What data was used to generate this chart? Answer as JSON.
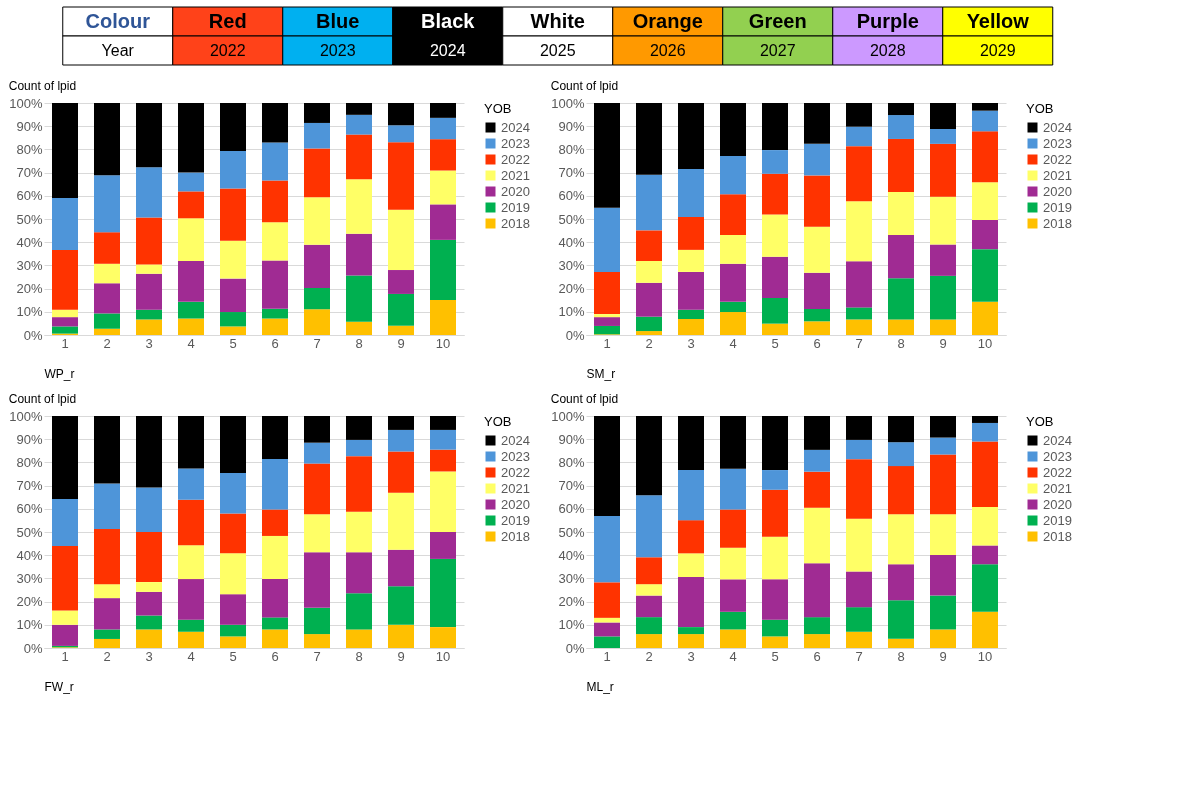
{
  "chart_data": [
    {
      "type": "other",
      "xlabel": "Colour",
      "ylabel": "Year",
      "categories": [
        "Red",
        "Blue",
        "Black",
        "White",
        "Orange",
        "Green",
        "Purple",
        "Yellow"
      ],
      "values": [
        2022,
        2023,
        2024,
        2025,
        2026,
        2027,
        2028,
        2029
      ],
      "data_labels": true,
      "colors": [
        "#ff4219",
        "#00b0f0",
        "#000000",
        "#ffffff",
        "#ff9900",
        "#92d050",
        "#cc99ff",
        "#ffff00"
      ]
    },
    {
      "type": "bar",
      "stacked": true,
      "title": "Count of lpid",
      "xlabel": "WP_r",
      "legend_title": "YOB",
      "legend": "right",
      "grid": "y",
      "categories": [
        "1",
        "2",
        "3",
        "4",
        "5",
        "6",
        "7",
        "8",
        "9",
        "10"
      ],
      "ylim": [
        0,
        100
      ],
      "yticks": [
        {
          "value": 0,
          "label": "0%"
        },
        {
          "value": 10,
          "label": "10%"
        },
        {
          "value": 20,
          "label": "20%"
        },
        {
          "value": 30,
          "label": "30%"
        },
        {
          "value": 40,
          "label": "40%"
        },
        {
          "value": 50,
          "label": "50%"
        },
        {
          "value": 60,
          "label": "60%"
        },
        {
          "value": 70,
          "label": "70%"
        },
        {
          "value": 80,
          "label": "80%"
        },
        {
          "value": 90,
          "label": "90%"
        },
        {
          "value": 100,
          "label": "100%"
        }
      ],
      "series": [
        {
          "name": "2018",
          "color": "#ffc000",
          "values": [
            0.6,
            2.7,
            6.7,
            7.1,
            3.7,
            7.1,
            11.1,
            5.7,
            4.0,
            15.1
          ]
        },
        {
          "name": "2019",
          "color": "#00b050",
          "values": [
            3.1,
            6.6,
            4.2,
            7.2,
            6.2,
            4.2,
            9.2,
            19.9,
            13.7,
            25.9
          ]
        },
        {
          "name": "2020",
          "color": "#a02b93",
          "values": [
            4.0,
            13.0,
            15.5,
            17.6,
            14.4,
            20.8,
            18.6,
            18.0,
            10.3,
            15.3
          ]
        },
        {
          "name": "2021",
          "color": "#ffff66",
          "values": [
            3.2,
            8.4,
            4.0,
            18.4,
            16.3,
            16.5,
            20.5,
            23.5,
            26.0,
            14.6
          ]
        },
        {
          "name": "2022",
          "color": "#ff3300",
          "values": [
            25.7,
            13.6,
            20.3,
            11.6,
            22.5,
            18.0,
            21.0,
            19.3,
            29.1,
            13.5
          ]
        },
        {
          "name": "2023",
          "color": "#4e95d9",
          "values": [
            22.4,
            24.6,
            21.6,
            8.1,
            16.2,
            16.4,
            11.0,
            8.5,
            7.3,
            9.2
          ]
        },
        {
          "name": "2024",
          "color": "#000000",
          "values": [
            41.0,
            31.1,
            27.7,
            30.0,
            20.7,
            17.0,
            8.6,
            5.1,
            9.6,
            6.4
          ]
        }
      ]
    },
    {
      "type": "bar",
      "stacked": true,
      "title": "Count of lpid",
      "xlabel": "SM_r",
      "legend_title": "YOB",
      "legend": "right",
      "grid": "y",
      "categories": [
        "1",
        "2",
        "3",
        "4",
        "5",
        "6",
        "7",
        "8",
        "9",
        "10"
      ],
      "ylim": [
        0,
        100
      ],
      "yticks": [
        {
          "value": 0,
          "label": "0%"
        },
        {
          "value": 10,
          "label": "10%"
        },
        {
          "value": 20,
          "label": "20%"
        },
        {
          "value": 30,
          "label": "30%"
        },
        {
          "value": 40,
          "label": "40%"
        },
        {
          "value": 50,
          "label": "50%"
        },
        {
          "value": 60,
          "label": "60%"
        },
        {
          "value": 70,
          "label": "70%"
        },
        {
          "value": 80,
          "label": "80%"
        },
        {
          "value": 90,
          "label": "90%"
        },
        {
          "value": 100,
          "label": "100%"
        }
      ],
      "series": [
        {
          "name": "2018",
          "color": "#ffc000",
          "values": [
            0.3,
            1.7,
            6.9,
            9.9,
            4.9,
            5.9,
            6.7,
            6.7,
            6.7,
            14.3
          ]
        },
        {
          "name": "2019",
          "color": "#00b050",
          "values": [
            3.6,
            6.2,
            4.0,
            4.4,
            11.1,
            5.3,
            5.2,
            17.8,
            18.8,
            22.7
          ]
        },
        {
          "name": "2020",
          "color": "#a02b93",
          "values": [
            3.8,
            14.6,
            16.3,
            16.4,
            17.7,
            15.6,
            19.9,
            18.6,
            13.5,
            12.6
          ]
        },
        {
          "name": "2021",
          "color": "#ffff66",
          "values": [
            1.3,
            9.4,
            9.5,
            12.4,
            18.2,
            19.9,
            25.8,
            18.5,
            20.6,
            16.2
          ]
        },
        {
          "name": "2022",
          "color": "#ff3300",
          "values": [
            18.2,
            13.2,
            14.2,
            17.6,
            17.6,
            22.1,
            23.8,
            22.9,
            22.8,
            22.0
          ]
        },
        {
          "name": "2023",
          "color": "#4e95d9",
          "values": [
            27.7,
            24.0,
            20.6,
            16.5,
            10.2,
            13.6,
            8.4,
            10.3,
            6.4,
            8.9
          ]
        },
        {
          "name": "2024",
          "color": "#000000",
          "values": [
            45.1,
            30.9,
            28.5,
            22.8,
            20.3,
            17.6,
            10.2,
            5.2,
            11.2,
            3.3
          ]
        }
      ]
    },
    {
      "type": "bar",
      "stacked": true,
      "title": "Count of lpid",
      "xlabel": "FW_r",
      "legend_title": "YOB",
      "legend": "right",
      "grid": "y",
      "categories": [
        "1",
        "2",
        "3",
        "4",
        "5",
        "6",
        "7",
        "8",
        "9",
        "10"
      ],
      "ylim": [
        0,
        100
      ],
      "yticks": [
        {
          "value": 0,
          "label": "0%"
        },
        {
          "value": 10,
          "label": "10%"
        },
        {
          "value": 20,
          "label": "20%"
        },
        {
          "value": 30,
          "label": "30%"
        },
        {
          "value": 40,
          "label": "40%"
        },
        {
          "value": 50,
          "label": "50%"
        },
        {
          "value": 60,
          "label": "60%"
        },
        {
          "value": 70,
          "label": "70%"
        },
        {
          "value": 80,
          "label": "80%"
        },
        {
          "value": 90,
          "label": "90%"
        },
        {
          "value": 100,
          "label": "100%"
        }
      ],
      "series": [
        {
          "name": "2018",
          "color": "#ffc000",
          "values": [
            0.3,
            3.9,
            8.0,
            7.0,
            5.0,
            8.0,
            6.0,
            8.0,
            10.0,
            9.0
          ]
        },
        {
          "name": "2019",
          "color": "#00b050",
          "values": [
            0.6,
            4.1,
            6.0,
            5.2,
            5.0,
            5.2,
            11.3,
            15.6,
            16.6,
            29.4
          ]
        },
        {
          "name": "2020",
          "color": "#a02b93",
          "values": [
            9.1,
            13.5,
            10.2,
            17.5,
            13.2,
            16.5,
            24.0,
            17.7,
            15.7,
            11.6
          ]
        },
        {
          "name": "2021",
          "color": "#ffff66",
          "values": [
            6.2,
            6.0,
            4.2,
            14.6,
            17.6,
            18.6,
            16.4,
            17.4,
            24.6,
            26.1
          ]
        },
        {
          "name": "2022",
          "color": "#ff3300",
          "values": [
            27.8,
            23.8,
            21.6,
            19.6,
            17.2,
            11.4,
            21.8,
            24.0,
            17.8,
            9.4
          ]
        },
        {
          "name": "2023",
          "color": "#4e95d9",
          "values": [
            20.2,
            19.6,
            19.2,
            13.5,
            17.4,
            21.8,
            9.0,
            7.0,
            9.3,
            8.5
          ]
        },
        {
          "name": "2024",
          "color": "#000000",
          "values": [
            35.8,
            29.1,
            30.8,
            22.6,
            24.6,
            18.5,
            11.5,
            10.3,
            6.0,
            6.0
          ]
        }
      ]
    },
    {
      "type": "bar",
      "stacked": true,
      "title": "Count of lpid",
      "xlabel": "ML_r",
      "legend_title": "YOB",
      "legend": "right",
      "grid": "y",
      "categories": [
        "1",
        "2",
        "3",
        "4",
        "5",
        "6",
        "7",
        "8",
        "9",
        "10"
      ],
      "ylim": [
        0,
        100
      ],
      "yticks": [
        {
          "value": 0,
          "label": "0%"
        },
        {
          "value": 10,
          "label": "10%"
        },
        {
          "value": 20,
          "label": "20%"
        },
        {
          "value": 30,
          "label": "30%"
        },
        {
          "value": 40,
          "label": "40%"
        },
        {
          "value": 50,
          "label": "50%"
        },
        {
          "value": 60,
          "label": "60%"
        },
        {
          "value": 70,
          "label": "70%"
        },
        {
          "value": 80,
          "label": "80%"
        },
        {
          "value": 90,
          "label": "90%"
        },
        {
          "value": 100,
          "label": "100%"
        }
      ],
      "series": [
        {
          "name": "2018",
          "color": "#ffc000",
          "values": [
            0,
            6.0,
            6.0,
            8.0,
            5.0,
            6.0,
            7.0,
            4.0,
            8.0,
            15.6
          ]
        },
        {
          "name": "2019",
          "color": "#00b050",
          "values": [
            5.0,
            7.3,
            3.0,
            7.6,
            7.2,
            7.3,
            10.6,
            16.6,
            14.6,
            20.5
          ]
        },
        {
          "name": "2020",
          "color": "#a02b93",
          "values": [
            6.0,
            9.3,
            21.6,
            14.0,
            17.4,
            23.2,
            15.4,
            15.5,
            17.5,
            8.1
          ]
        },
        {
          "name": "2021",
          "color": "#ffff66",
          "values": [
            2.0,
            4.9,
            10.2,
            13.6,
            18.3,
            23.9,
            22.7,
            21.6,
            17.6,
            16.6
          ]
        },
        {
          "name": "2022",
          "color": "#ff3300",
          "values": [
            15.3,
            11.6,
            14.3,
            16.5,
            20.3,
            15.6,
            25.7,
            20.7,
            25.7,
            28.2
          ]
        },
        {
          "name": "2023",
          "color": "#4e95d9",
          "values": [
            28.6,
            26.7,
            21.6,
            17.6,
            8.5,
            9.4,
            8.3,
            10.3,
            7.3,
            8.0
          ]
        },
        {
          "name": "2024",
          "color": "#000000",
          "values": [
            43.1,
            34.2,
            23.3,
            22.7,
            23.3,
            14.6,
            10.3,
            11.3,
            9.3,
            3.0
          ]
        }
      ]
    }
  ]
}
